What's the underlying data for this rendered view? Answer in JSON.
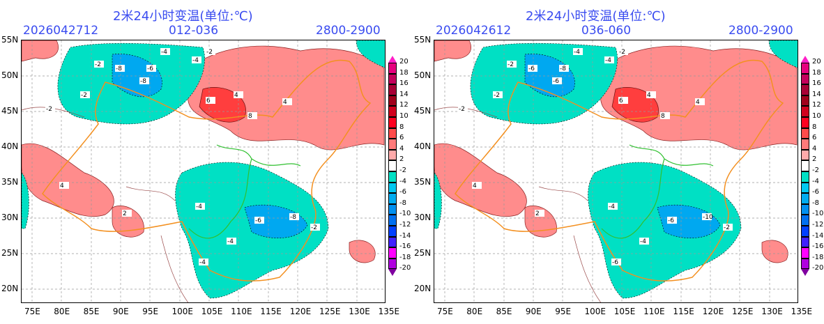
{
  "panels": [
    {
      "title": "2米24小时变温(单位:℃)",
      "init": "2026042712",
      "range": "012-036",
      "level": "2800-2900",
      "labels": [
        "-2",
        "-4",
        "-8",
        "-6",
        "-8",
        "-2",
        "-4",
        "4",
        "6",
        "8",
        "4",
        "-2",
        "-2",
        "-4",
        "-6",
        "-8",
        "-4",
        "-4",
        "-2",
        "2",
        "4"
      ]
    },
    {
      "title": "2米24小时变温(单位:℃)",
      "init": "2026042612",
      "range": "036-060",
      "level": "2800-2900",
      "labels": [
        "-2",
        "-4",
        "-6",
        "-8",
        "-6",
        "-2",
        "-4",
        "4",
        "6",
        "8",
        "4",
        "-2",
        "-2",
        "-4",
        "-6",
        "-10",
        "-4",
        "-6",
        "-2",
        "2",
        "4"
      ]
    }
  ],
  "lat_ticks": [
    "55N",
    "50N",
    "45N",
    "40N",
    "35N",
    "30N",
    "25N",
    "20N"
  ],
  "lon_ticks": [
    "75E",
    "80E",
    "85E",
    "90E",
    "95E",
    "100E",
    "105E",
    "110E",
    "115E",
    "120E",
    "125E",
    "130E",
    "135E"
  ],
  "colorbar": {
    "labels": [
      "20",
      "18",
      "16",
      "14",
      "12",
      "10",
      "8",
      "6",
      "4",
      "2",
      "-2",
      "-4",
      "-6",
      "-8",
      "-10",
      "-12",
      "-14",
      "-16",
      "-18",
      "-20"
    ],
    "colors": [
      "#e6007e",
      "#c4005c",
      "#a80036",
      "#a0001c",
      "#d0001e",
      "#ff0020",
      "#ff4a4a",
      "#ff7a7a",
      "#ffaaaa",
      "#ffffff",
      "#00e0c4",
      "#00c8f0",
      "#00acf0",
      "#0090f0",
      "#0070f0",
      "#0040ff",
      "#4020ff",
      "#ff00ff",
      "#b000e0"
    ],
    "top_arrow": "#ff20c8",
    "bottom_arrow": "#8000a0"
  }
}
